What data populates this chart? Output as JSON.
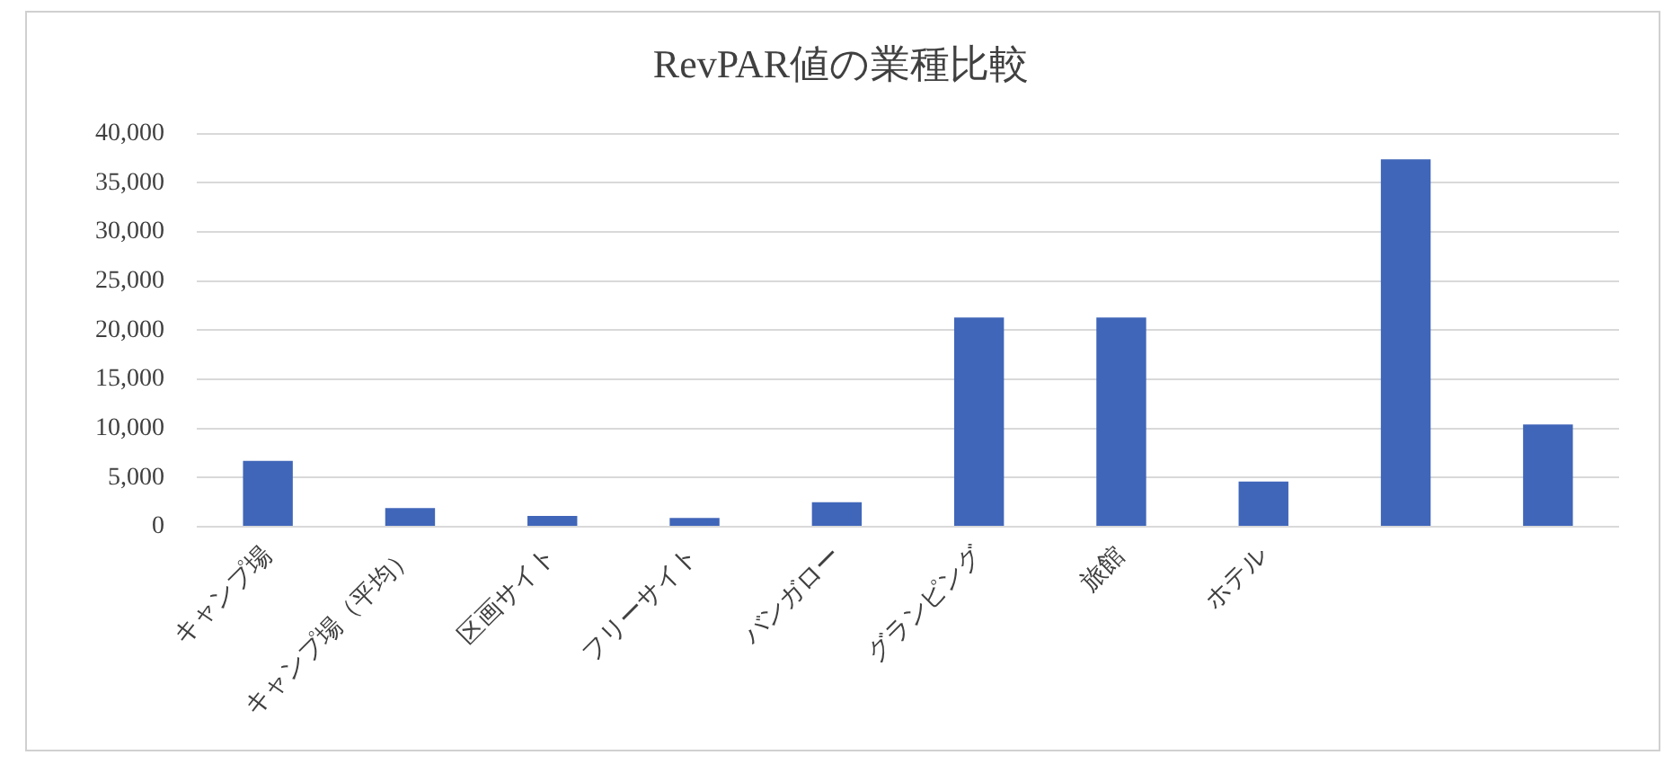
{
  "chart_data": {
    "type": "bar",
    "title": "RevPAR値の業種比較",
    "categories": [
      "キャンプ場",
      "キャンプ場（平均）",
      "区画サイト",
      "フリーサイト",
      "バンガロー",
      "グランピング",
      "旅館",
      "ホテル",
      null,
      null
    ],
    "values": [
      6700,
      1900,
      1100,
      900,
      2500,
      21300,
      21300,
      4600,
      37400,
      10400
    ],
    "color": "#4066b9",
    "ylim": [
      0,
      40000
    ],
    "yticks": [
      0,
      {
        "value": 5000,
        "label": "5,000"
      },
      {
        "value": 10000,
        "label": "10,000"
      },
      {
        "value": 15000,
        "label": "15,000"
      },
      {
        "value": 20000,
        "label": "20,000"
      },
      {
        "value": 25000,
        "label": "25,000"
      },
      {
        "value": 30000,
        "label": "30,000"
      },
      {
        "value": 35000,
        "label": "35,000"
      },
      {
        "value": 40000,
        "label": "40,000"
      }
    ],
    "grid": "y",
    "legend": false
  }
}
